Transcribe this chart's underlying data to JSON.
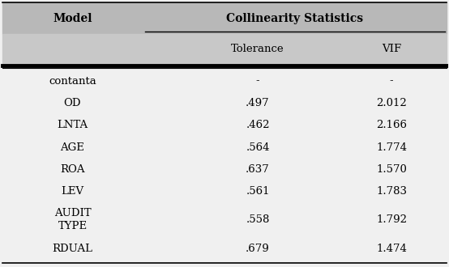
{
  "title": "Collinearity Statistics",
  "col_model": "Model",
  "col_tolerance": "Tolerance",
  "col_vif": "VIF",
  "rows": [
    {
      "model": "contanta",
      "tolerance": "-",
      "vif": "-",
      "multiline": false
    },
    {
      "model": "OD",
      "tolerance": ".497",
      "vif": "2.012",
      "multiline": false
    },
    {
      "model": "LNTA",
      "tolerance": ".462",
      "vif": "2.166",
      "multiline": false
    },
    {
      "model": "AGE",
      "tolerance": ".564",
      "vif": "1.774",
      "multiline": false
    },
    {
      "model": "ROA",
      "tolerance": ".637",
      "vif": "1.570",
      "multiline": false
    },
    {
      "model": "LEV",
      "tolerance": ".561",
      "vif": "1.783",
      "multiline": false
    },
    {
      "model": "AUDIT\nTYPE",
      "tolerance": ".558",
      "vif": "1.792",
      "multiline": true
    },
    {
      "model": "RDUAL",
      "tolerance": ".679",
      "vif": "1.474",
      "multiline": false
    }
  ],
  "header_bg": "#b8b8b8",
  "subheader_bg": "#c8c8c8",
  "bg_color": "#f0f0f0",
  "header_fontsize": 10,
  "body_fontsize": 9.5,
  "fig_width": 5.54,
  "fig_height": 3.3,
  "dpi": 100
}
